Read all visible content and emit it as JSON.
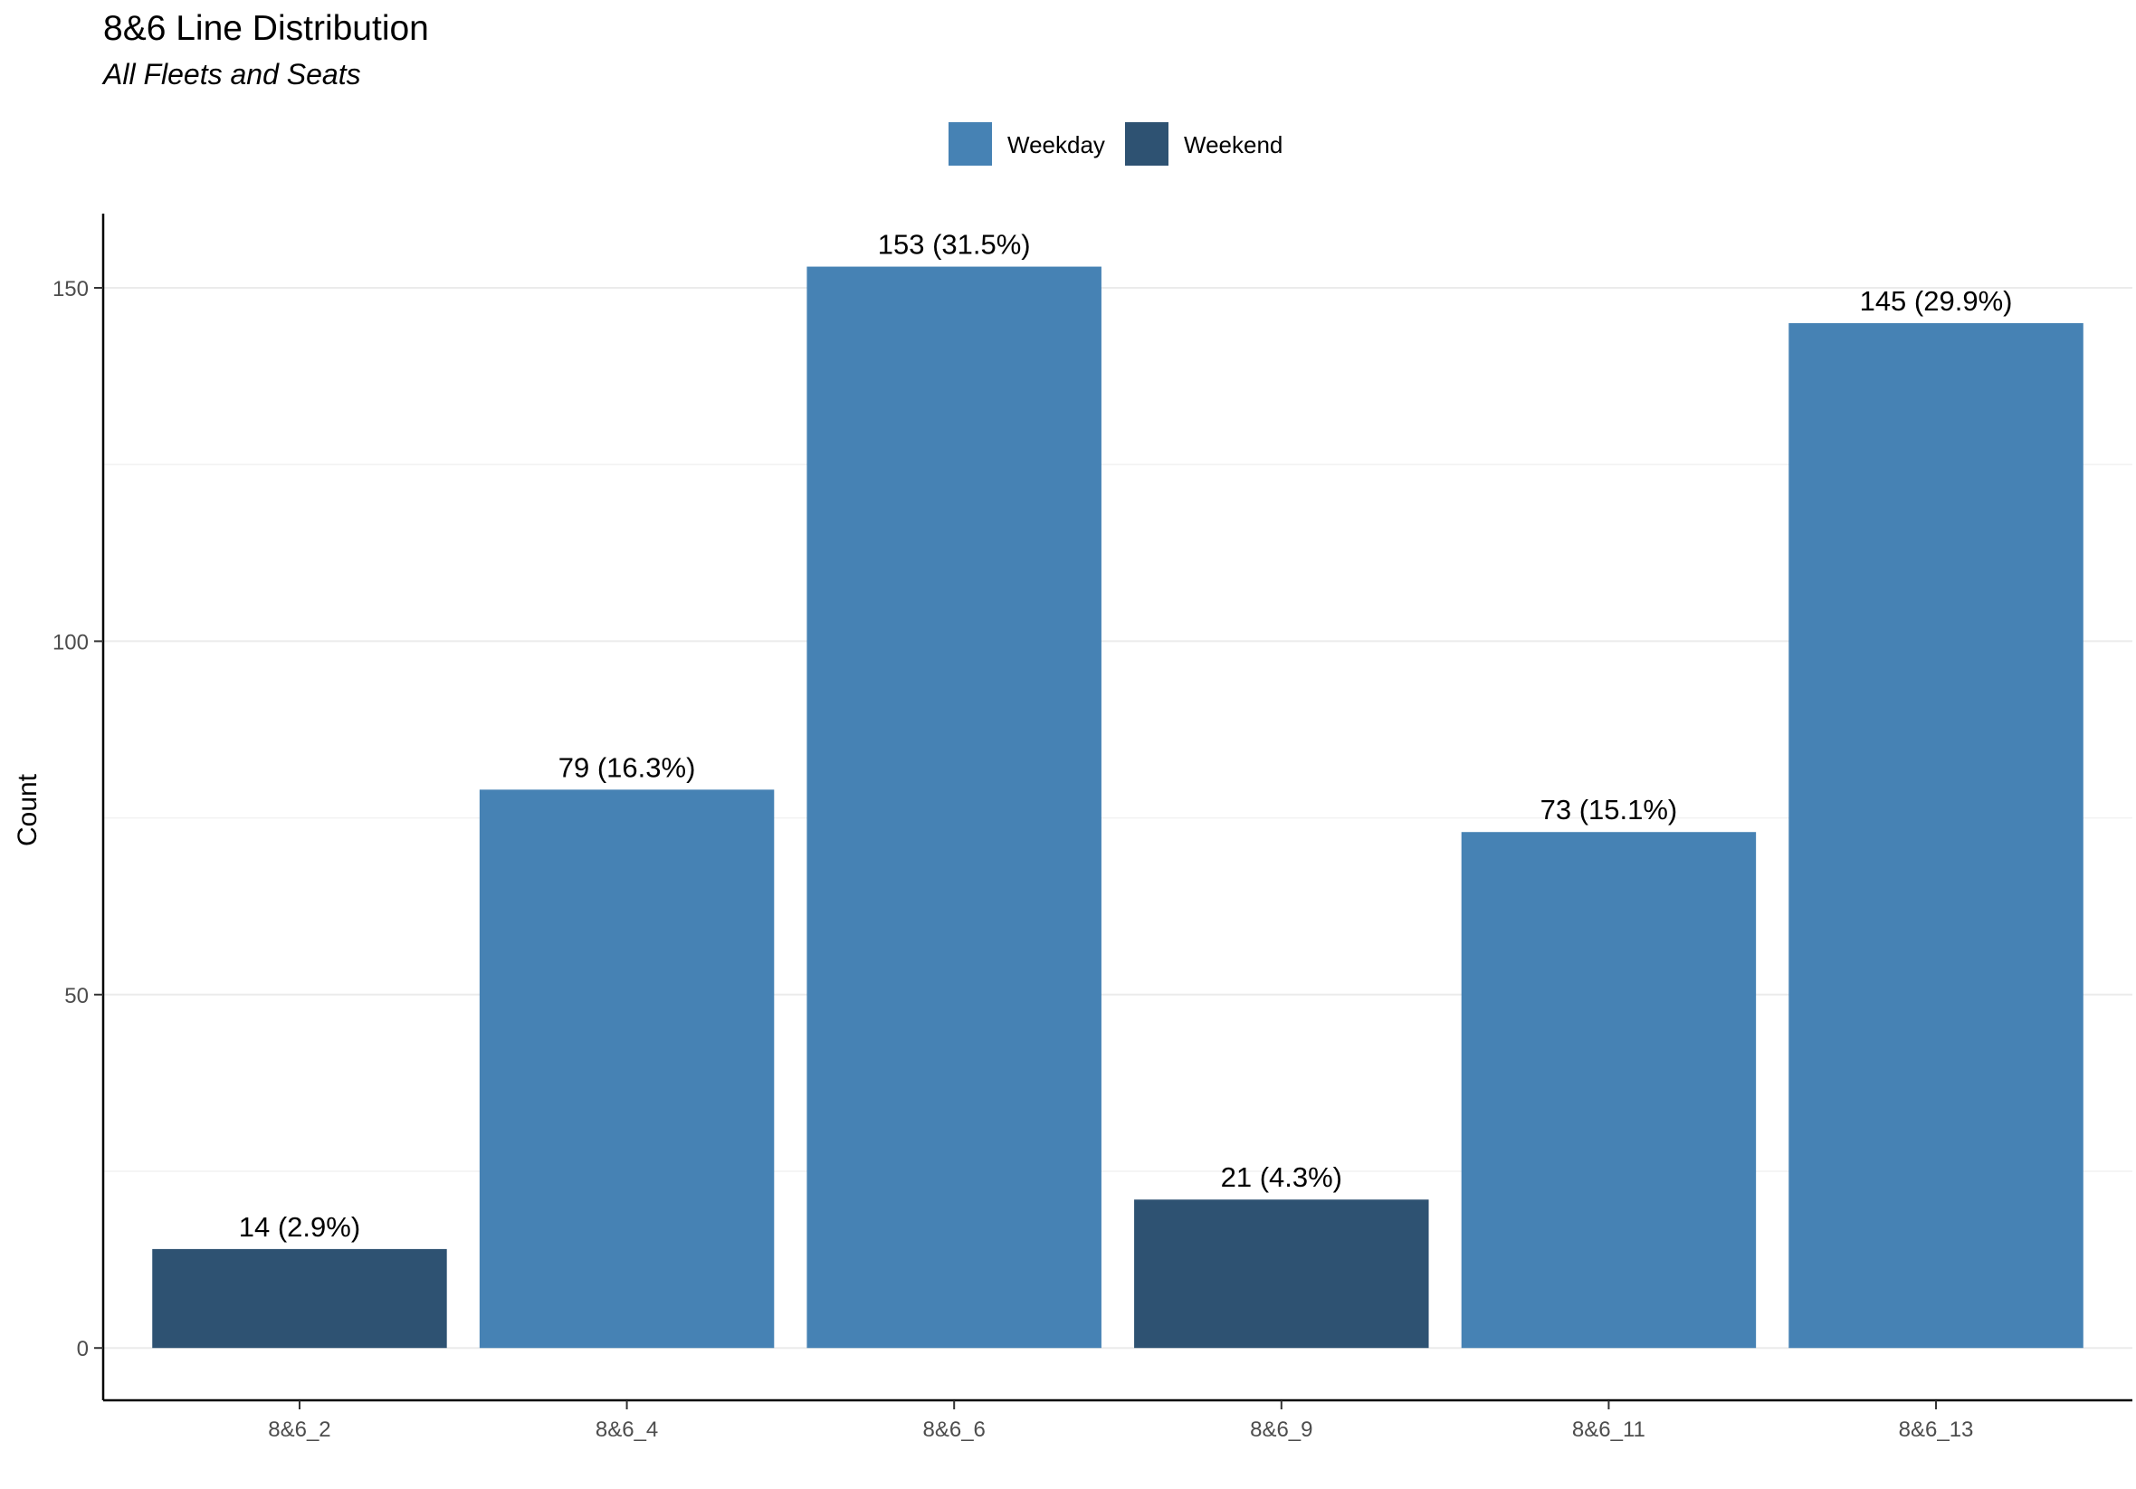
{
  "chart_data": {
    "type": "bar",
    "title": "8&6 Line Distribution",
    "subtitle": "All Fleets and Seats",
    "xlabel": "",
    "ylabel": "Count",
    "categories": [
      "8&6_2",
      "8&6_4",
      "8&6_6",
      "8&6_9",
      "8&6_11",
      "8&6_13"
    ],
    "values": [
      14,
      79,
      153,
      21,
      73,
      145
    ],
    "groups": [
      "Weekend",
      "Weekday",
      "Weekday",
      "Weekend",
      "Weekday",
      "Weekday"
    ],
    "data_labels": [
      "14 (2.9%)",
      "79 (16.3%)",
      "153 (31.5%)",
      "21 (4.3%)",
      "73 (15.1%)",
      "145 (29.9%)"
    ],
    "legend": {
      "placement": "top",
      "entries": [
        {
          "name": "Weekday",
          "color": "#4682B4"
        },
        {
          "name": "Weekend",
          "color": "#2E5272"
        }
      ]
    },
    "y_ticks": [
      0,
      50,
      100,
      150
    ],
    "ylim": [
      -7.4,
      160.5
    ],
    "grid": "major and minor horizontal gridlines, light gray",
    "colors": {
      "Weekday": "#4682B4",
      "Weekend": "#2E5272"
    }
  }
}
